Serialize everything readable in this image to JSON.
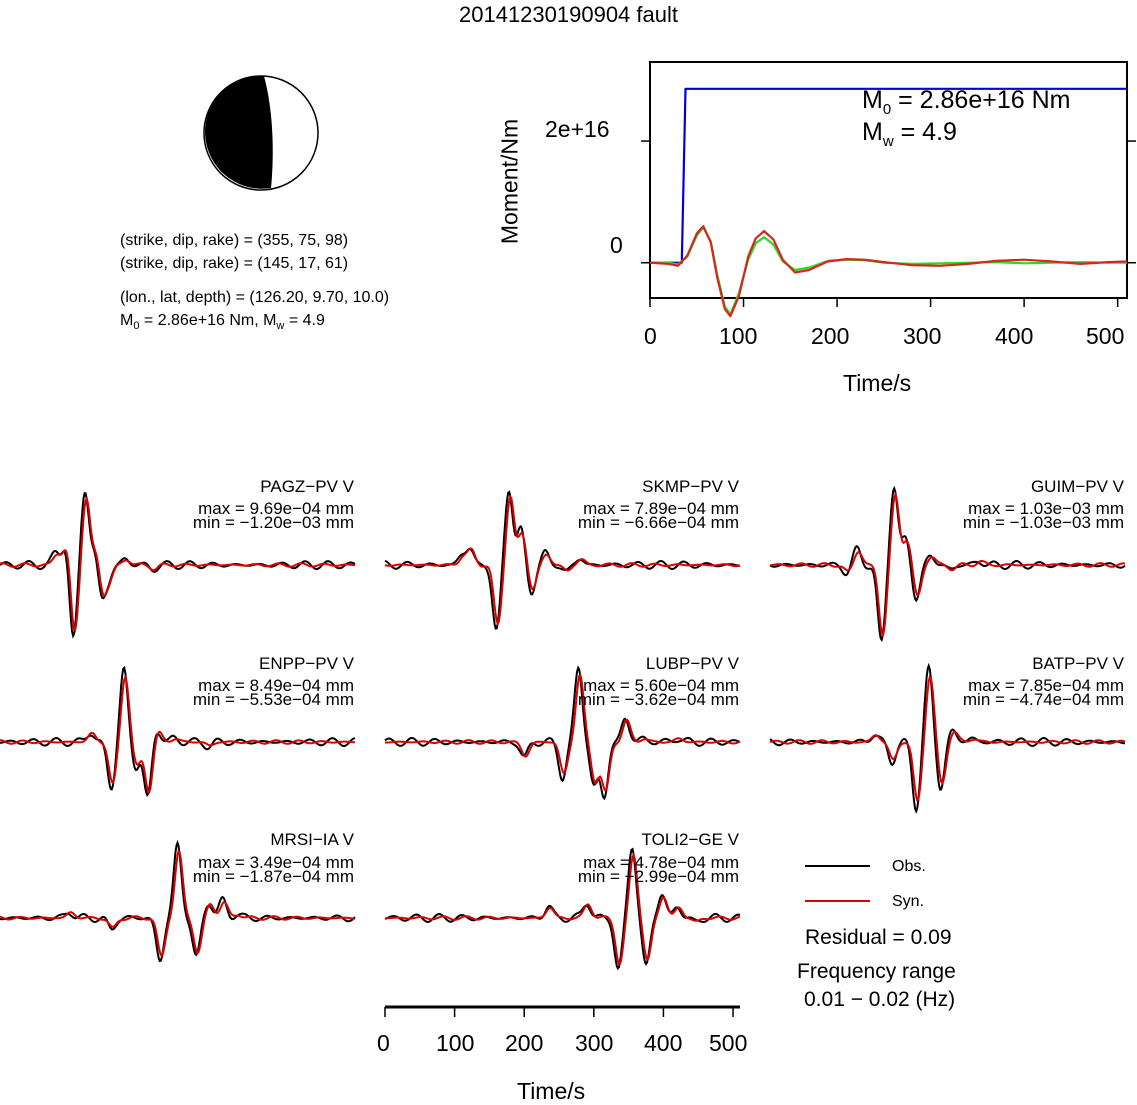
{
  "figure": {
    "title": "20141230190904 fault"
  },
  "mechanism": {
    "line1": "(strike, dip, rake) = (355, 75, 98)",
    "line2": "(strike, dip, rake) = (145, 17, 61)",
    "line3": "(lon., lat, depth) = (126.20, 9.70, 10.0)",
    "line4_m0": "M",
    "line4_m0_sub": "0",
    "line4_mid": " = 2.86e+16 Nm, M",
    "line4_mw_sub": "w",
    "line4_end": " = 4.9",
    "colors": {
      "fill": "#000000",
      "ring": "#000000"
    }
  },
  "moment_annotation": {
    "m0_sym": "M",
    "m0_sub": "0",
    "m0_val": " = 2.86e+16 Nm",
    "mw_sym": "M",
    "mw_sub": "w",
    "mw_val": " = 4.9"
  },
  "legend": {
    "obs_label": "Obs.",
    "syn_label": "Syn.",
    "residual": "Residual = 0.09",
    "freq_title": "Frequency range",
    "freq_range": "0.01 − 0.02 (Hz)"
  },
  "chart_data": [
    {
      "type": "line",
      "title": "",
      "xlabel": "Time/s",
      "ylabel": "Moment/Nm",
      "xlim": [
        0,
        510
      ],
      "ylim": [
        -5800000000000000.0,
        3.3e+16
      ],
      "xticks": [
        0,
        100,
        200,
        300,
        400,
        500
      ],
      "xtick_labels": [
        "0",
        "100",
        "200",
        "300",
        "400",
        "500"
      ],
      "yticks": [
        0,
        2e+16
      ],
      "ytick_labels": [
        "0",
        "2e+16"
      ],
      "series": [
        {
          "name": "",
          "color": "#0000dd",
          "x": [
            0,
            34,
            38,
            510
          ],
          "y": [
            0,
            0,
            2.86e+16,
            2.86e+16
          ]
        },
        {
          "name": "",
          "color": "#22dd22",
          "x": [
            0,
            20,
            30,
            40,
            50,
            57,
            65,
            72,
            80,
            86,
            95,
            105,
            113,
            122,
            132,
            142,
            155,
            170,
            190,
            210,
            230,
            250,
            280,
            310,
            340,
            370,
            400,
            430,
            460,
            490,
            510
          ],
          "y": [
            0,
            0,
            -300000000000000.0,
            1000000000000000.0,
            4500000000000000.0,
            5800000000000000.0,
            3500000000000000.0,
            -2000000000000000.0,
            -7200000000000000.0,
            -8500000000000000.0,
            -5000000000000000.0,
            500000000000000.0,
            3200000000000000.0,
            4200000000000000.0,
            3000000000000000.0,
            200000000000000.0,
            -1200000000000000.0,
            -800000000000000.0,
            300000000000000.0,
            500000000000000.0,
            400000000000000.0,
            0.0,
            -200000000000000.0,
            -100000000000000.0,
            0.0,
            100000000000000.0,
            -100000000000000.0,
            0.0,
            100000000000000.0,
            0.0,
            0.0
          ]
        },
        {
          "name": "",
          "color": "#dd2222",
          "x": [
            0,
            20,
            30,
            40,
            50,
            57,
            65,
            72,
            80,
            86,
            95,
            105,
            113,
            122,
            132,
            142,
            155,
            170,
            190,
            210,
            230,
            250,
            280,
            310,
            340,
            370,
            400,
            430,
            460,
            490,
            510
          ],
          "y": [
            0,
            -200000000000000.0,
            -500000000000000.0,
            1200000000000000.0,
            4800000000000000.0,
            6000000000000000.0,
            3300000000000000.0,
            -2500000000000000.0,
            -7600000000000000.0,
            -8800000000000000.0,
            -5500000000000000.0,
            1000000000000000.0,
            4000000000000000.0,
            5200000000000000.0,
            3800000000000000.0,
            500000000000000.0,
            -1600000000000000.0,
            -1200000000000000.0,
            200000000000000.0,
            600000000000000.0,
            500000000000000.0,
            100000000000000.0,
            -400000000000000.0,
            -500000000000000.0,
            -200000000000000.0,
            300000000000000.0,
            500000000000000.0,
            200000000000000.0,
            -200000000000000.0,
            100000000000000.0,
            200000000000000.0
          ]
        }
      ]
    },
    {
      "type": "line",
      "title": "",
      "xlabel": "Time/s",
      "xlim": [
        0,
        510
      ],
      "xticks": [
        0,
        100,
        200,
        300,
        400,
        500
      ],
      "xtick_labels": [
        "0",
        "100",
        "200",
        "300",
        "400",
        "500"
      ],
      "series": [
        {
          "name": "Obs.",
          "color": "#000000"
        },
        {
          "name": "Syn.",
          "color": "#dd0000"
        }
      ],
      "stations": [
        {
          "name": "PAGZ−PV V",
          "max": "max = 9.69e−04 mm",
          "min": "min = −1.20e−03 mm",
          "max_val": 0.000969,
          "min_val": -0.0012,
          "peaks": [
            [
              80,
              0.15
            ],
            [
              95,
              0.3
            ],
            [
              105,
              -1.0
            ],
            [
              122,
              0.95
            ],
            [
              138,
              0.25
            ],
            [
              145,
              -0.45
            ],
            [
              155,
              -0.2
            ],
            [
              180,
              0.08
            ],
            [
              220,
              -0.05
            ]
          ]
        },
        {
          "name": "SKMP−PV V",
          "max": "max = 7.89e−04 mm",
          "min": "min = −6.66e−04 mm",
          "max_val": 0.000789,
          "min_val": -0.000666,
          "peaks": [
            [
              110,
              0.12
            ],
            [
              122,
              0.2
            ],
            [
              160,
              -0.85
            ],
            [
              178,
              0.98
            ],
            [
              195,
              0.45
            ],
            [
              210,
              -0.35
            ],
            [
              230,
              0.15
            ],
            [
              260,
              -0.08
            ],
            [
              280,
              0.08
            ]
          ]
        },
        {
          "name": "GUIM−PV V",
          "max": "max = 1.03e−03 mm",
          "min": "min = −1.03e−03 mm",
          "max_val": 0.00103,
          "min_val": -0.00103,
          "peaks": [
            [
              110,
              -0.1
            ],
            [
              125,
              0.2
            ],
            [
              160,
              -1.0
            ],
            [
              178,
              1.0
            ],
            [
              195,
              0.35
            ],
            [
              210,
              -0.45
            ],
            [
              230,
              0.12
            ],
            [
              260,
              -0.05
            ],
            [
              300,
              0.05
            ]
          ]
        },
        {
          "name": "ENPP−PV V",
          "max": "max = 8.49e−04 mm",
          "min": "min = −5.53e−04 mm",
          "max_val": 0.000849,
          "min_val": -0.000553,
          "peaks": [
            [
              130,
              0.12
            ],
            [
              160,
              -0.6
            ],
            [
              178,
              0.95
            ],
            [
              195,
              -0.35
            ],
            [
              212,
              -0.7
            ],
            [
              225,
              0.15
            ],
            [
              250,
              0.05
            ],
            [
              300,
              -0.05
            ]
          ]
        },
        {
          "name": "LUBP−PV V",
          "max": "max = 5.60e−04 mm",
          "min": "min = −3.62e−04 mm",
          "max_val": 0.00056,
          "min_val": -0.000362,
          "peaks": [
            [
              200,
              -0.2
            ],
            [
              255,
              -0.45
            ],
            [
              278,
              0.95
            ],
            [
              300,
              -0.55
            ],
            [
              315,
              -0.7
            ],
            [
              345,
              0.3
            ],
            [
              370,
              0.05
            ],
            [
              420,
              0.05
            ]
          ]
        },
        {
          "name": "BATP−PV V",
          "max": "max = 7.85e−04 mm",
          "min": "min = −4.74e−04 mm",
          "max_val": 0.000785,
          "min_val": -0.000474,
          "peaks": [
            [
              150,
              0.1
            ],
            [
              175,
              -0.25
            ],
            [
              210,
              -0.85
            ],
            [
              228,
              0.95
            ],
            [
              245,
              -0.6
            ],
            [
              262,
              0.15
            ],
            [
              290,
              0.05
            ]
          ]
        },
        {
          "name": "MRSI−IA V",
          "max": "max = 3.49e−04 mm",
          "min": "min = −1.87e−04 mm",
          "max_val": 0.000349,
          "min_val": -0.000187,
          "peaks": [
            [
              100,
              0.08
            ],
            [
              160,
              -0.15
            ],
            [
              230,
              -0.55
            ],
            [
              255,
              0.95
            ],
            [
              282,
              -0.5
            ],
            [
              300,
              0.2
            ],
            [
              320,
              0.22
            ],
            [
              340,
              0.05
            ]
          ]
        },
        {
          "name": "TOLI2−GE V",
          "max": "max = 4.78e−04 mm",
          "min": "min = −2.99e−04 mm",
          "max_val": 0.000478,
          "min_val": -0.000299,
          "peaks": [
            [
              235,
              0.15
            ],
            [
              290,
              0.2
            ],
            [
              335,
              -0.65
            ],
            [
              355,
              0.9
            ],
            [
              375,
              -0.6
            ],
            [
              398,
              0.3
            ],
            [
              420,
              0.15
            ],
            [
              445,
              -0.05
            ]
          ]
        }
      ]
    }
  ]
}
